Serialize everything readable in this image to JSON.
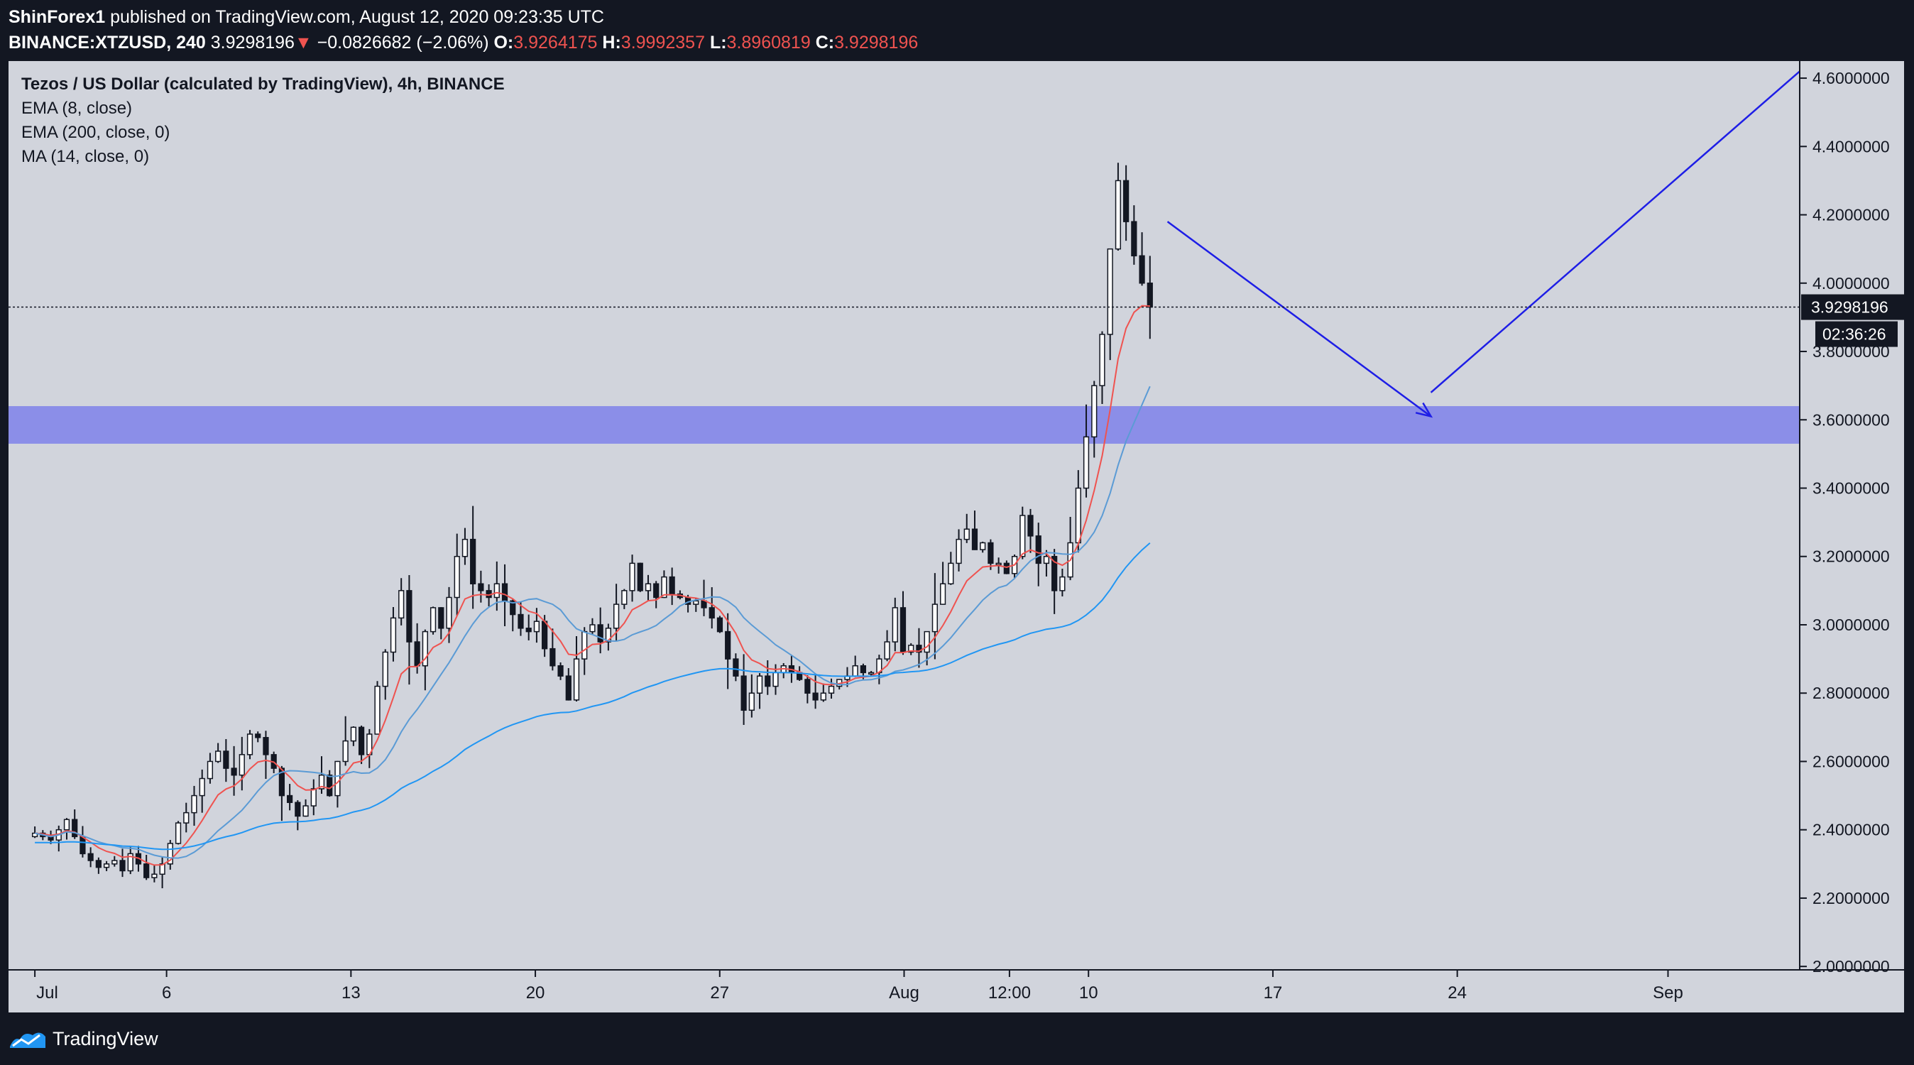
{
  "header": {
    "publisher": "ShinForex1",
    "published_text": "published on TradingView.com, August 12, 2020 09:23:35 UTC",
    "symbol": "BINANCE:XTZUSD, 240",
    "last": "3.9298196",
    "change_arrow": "▼",
    "change": "−0.0826682 (−2.06%)",
    "o_label": "O:",
    "o_val": "3.9264175",
    "h_label": "H:",
    "h_val": "3.9992357",
    "l_label": "L:",
    "l_val": "3.8960819",
    "c_label": "C:",
    "c_val": "3.9298196"
  },
  "legend": {
    "title": "Tezos / US Dollar (calculated by TradingView), 4h, BINANCE",
    "ind1": "EMA (8, close)",
    "ind2": "EMA (200, close, 0)",
    "ind3": "MA (14, close, 0)"
  },
  "footer": {
    "brand": "TradingView",
    "icon": "tradingview-logo-icon"
  },
  "colors": {
    "background": "#131722",
    "pane": "#d1d4dc",
    "up_candle": "#ffffff",
    "down_candle": "#131722",
    "ema8": "#ef5350",
    "ema200": "#2196f3",
    "ma14": "#5b9bd5",
    "zone": "#8b8ee8",
    "arrows": "#1e1ee6",
    "negative": "#ef5350"
  },
  "chart_data": {
    "type": "candlestick",
    "ylim": [
      1.99,
      4.65
    ],
    "y_ticks": [
      "2.0000000",
      "2.2000000",
      "2.4000000",
      "2.6000000",
      "2.8000000",
      "3.0000000",
      "3.2000000",
      "3.4000000",
      "3.6000000",
      "3.8000000",
      "4.0000000",
      "4.2000000",
      "4.4000000",
      "4.6000000"
    ],
    "x_ticks": [
      "Jul",
      "6",
      "13",
      "20",
      "27",
      "Aug",
      "12:00",
      "10",
      "17",
      "24",
      "Sep"
    ],
    "x_tick_dates": [
      "2020-07-01",
      "2020-07-06",
      "2020-07-13",
      "2020-07-20",
      "2020-07-27",
      "2020-08-03",
      "2020-08-07",
      "2020-08-10",
      "2020-08-17",
      "2020-08-24",
      "2020-09-01"
    ],
    "x_range_dates": [
      "2020-06-30",
      "2020-09-06"
    ],
    "last_price_label": "3.9298196",
    "countdown_label": "02:36:26",
    "support_zone": [
      3.53,
      3.64
    ],
    "arrows": [
      {
        "from": {
          "date": "2020-08-13",
          "price": 4.18
        },
        "to": {
          "date": "2020-08-23",
          "price": 3.61
        }
      },
      {
        "from": {
          "date": "2020-08-23",
          "price": 3.68
        },
        "to": {
          "date": "2020-09-06",
          "price": 4.62
        }
      }
    ],
    "close_series": [
      2.39,
      2.38,
      2.37,
      2.4,
      2.43,
      2.38,
      2.33,
      2.31,
      2.29,
      2.3,
      2.31,
      2.28,
      2.33,
      2.3,
      2.26,
      2.27,
      2.3,
      2.36,
      2.42,
      2.45,
      2.5,
      2.55,
      2.6,
      2.63,
      2.58,
      2.56,
      2.62,
      2.68,
      2.67,
      2.62,
      2.58,
      2.5,
      2.48,
      2.44,
      2.47,
      2.52,
      2.56,
      2.5,
      2.6,
      2.66,
      2.7,
      2.62,
      2.68,
      2.82,
      2.92,
      3.02,
      3.1,
      2.95,
      2.88,
      2.98,
      3.05,
      2.99,
      3.08,
      3.2,
      3.25,
      3.12,
      3.1,
      3.08,
      3.12,
      3.07,
      3.03,
      2.99,
      2.98,
      3.01,
      2.93,
      2.88,
      2.85,
      2.78,
      2.9,
      2.98,
      3.0,
      2.95,
      2.99,
      3.06,
      3.1,
      3.18,
      3.1,
      3.12,
      3.08,
      3.14,
      3.09,
      3.08,
      3.06,
      3.07,
      3.05,
      3.02,
      2.98,
      2.9,
      2.85,
      2.75,
      2.8,
      2.85,
      2.82,
      2.86,
      2.88,
      2.86,
      2.84,
      2.8,
      2.78,
      2.8,
      2.82,
      2.84,
      2.85,
      2.88,
      2.86,
      2.86,
      2.9,
      2.95,
      3.05,
      2.92,
      2.94,
      2.92,
      2.98,
      3.06,
      3.12,
      3.18,
      3.25,
      3.28,
      3.22,
      3.24,
      3.18,
      3.18,
      3.15,
      3.2,
      3.32,
      3.26,
      3.18,
      3.2,
      3.1,
      3.14,
      3.24,
      3.4,
      3.55,
      3.7,
      3.85,
      4.1,
      4.3,
      4.18,
      4.08,
      4.0,
      3.93
    ]
  }
}
